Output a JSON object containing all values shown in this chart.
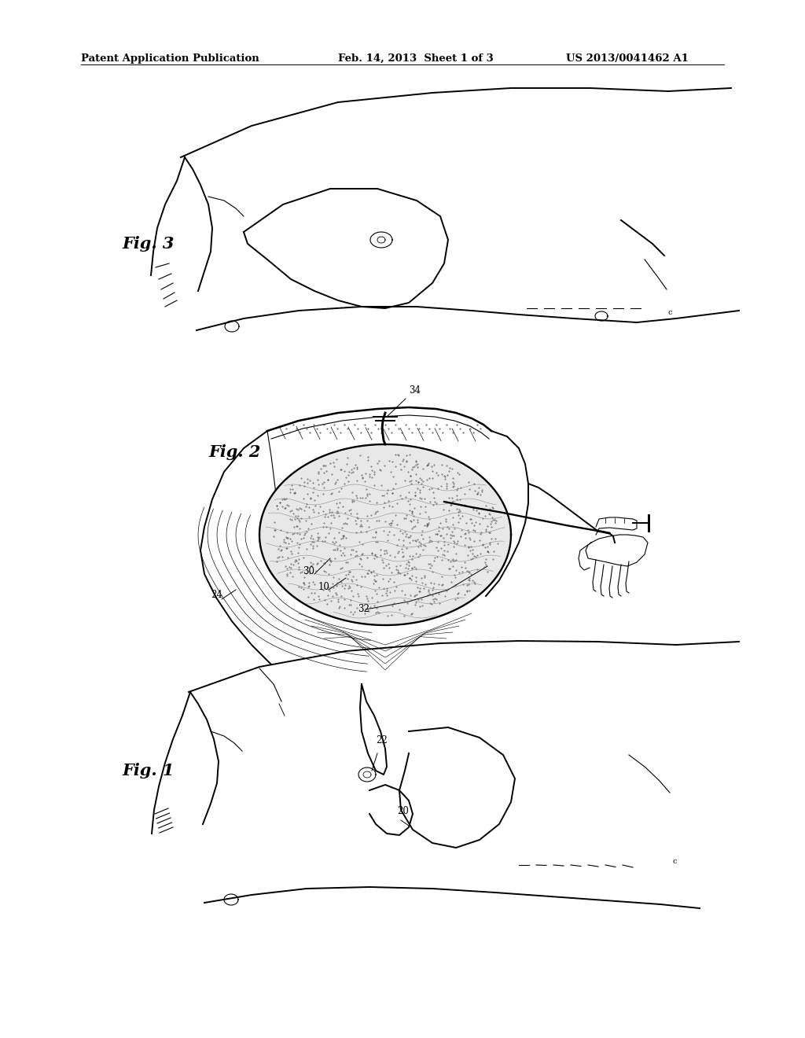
{
  "header_left": "Patent Application Publication",
  "header_center": "Feb. 14, 2013  Sheet 1 of 3",
  "header_right": "US 2013/0041462 A1",
  "fig1_label": "Fig. 1",
  "fig2_label": "Fig. 2",
  "fig3_label": "Fig. 3",
  "bg_color": "#ffffff",
  "line_color": "#000000",
  "text_color": "#000000",
  "header_fontsize": 9.5,
  "fig_label_fontsize": 15,
  "ref_label_fontsize": 8.5
}
